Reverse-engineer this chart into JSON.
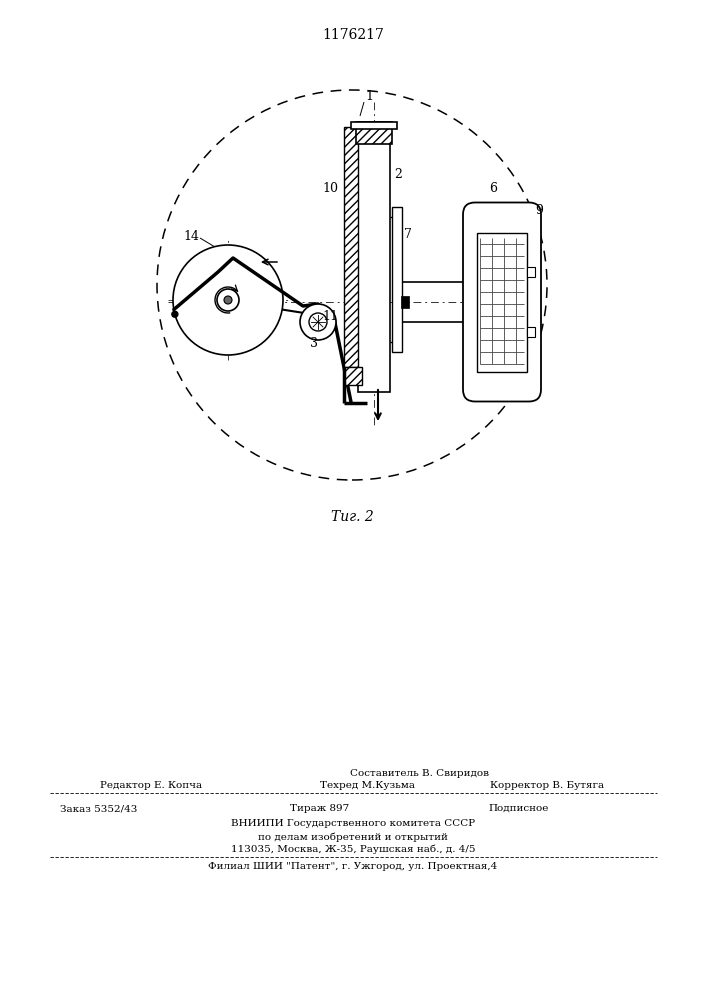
{
  "title": "1176217",
  "fig_label": "Τиг. 2",
  "bg_color": "#ffffff",
  "lc": "#000000",
  "footer": {
    "line1": "Составитель В. Свиридов",
    "line2_left": "Редактор Е. Копча",
    "line2_mid": "Техред М.Кузьма",
    "line2_right": "Корректор В. Бутяга",
    "line3_left": "Заказ 5352/43",
    "line3_mid": "Тираж 897",
    "line3_right": "Подписное",
    "line4": "ВНИИПИ Государственного комитета СССР",
    "line5": "по делам изобретений и открытий",
    "line6": "113035, Москва, Ж-35, Раушская наб., д. 4/5",
    "line7": "Филиал ШИИ \"Патент\", г. Ужгород, ул. Проектная,4"
  }
}
